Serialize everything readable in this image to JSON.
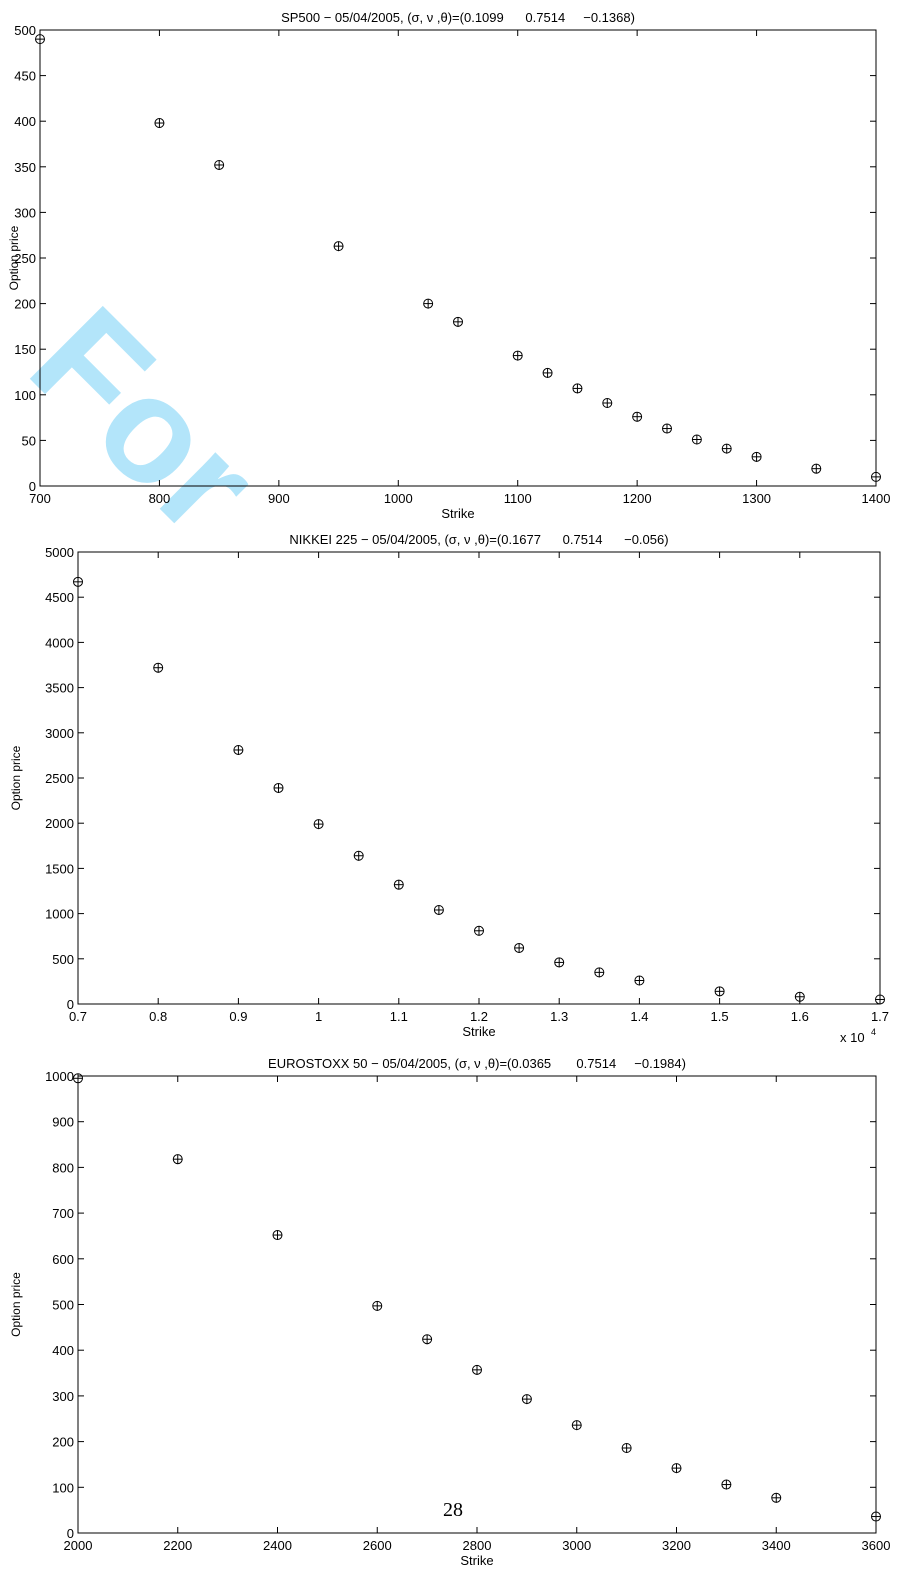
{
  "watermark": "For",
  "page_number": "28",
  "chart_data": [
    {
      "type": "scatter",
      "marker": "circle-plus",
      "color": "#000000",
      "title": "SP500 − 05/04/2005, (σ, ν ,θ)=(0.1099      0.7514     −0.1368)",
      "x_label": "Strike",
      "y_label": "Option price",
      "x": [
        700,
        800,
        850,
        950,
        1025,
        1050,
        1100,
        1125,
        1150,
        1175,
        1200,
        1225,
        1250,
        1275,
        1300,
        1350,
        1400
      ],
      "values": [
        490,
        398,
        352,
        263,
        200,
        180,
        143,
        124,
        107,
        91,
        76,
        63,
        51,
        41,
        32,
        19,
        10
      ],
      "xlim": [
        700,
        1400
      ],
      "xticks": [
        700,
        800,
        900,
        1000,
        1100,
        1200,
        1300,
        1400
      ],
      "ylim": [
        0,
        500
      ],
      "yticks": [
        0,
        50,
        100,
        150,
        200,
        250,
        300,
        350,
        400,
        450,
        500
      ]
    },
    {
      "type": "scatter",
      "marker": "circle-plus",
      "color": "#000000",
      "title": "NIKKEI 225 − 05/04/2005, (σ, ν ,θ)=(0.1677      0.7514      −0.056)",
      "x_label": "Strike",
      "y_label": "Option price",
      "x_multiplier": "x 10",
      "x_exponent": "4",
      "x": [
        0.7,
        0.8,
        0.9,
        0.95,
        1.0,
        1.05,
        1.1,
        1.15,
        1.2,
        1.25,
        1.3,
        1.35,
        1.4,
        1.5,
        1.6,
        1.7
      ],
      "values": [
        4670,
        3720,
        2810,
        2390,
        1990,
        1640,
        1320,
        1040,
        810,
        620,
        460,
        350,
        260,
        140,
        80,
        50
      ],
      "xlim": [
        0.7,
        1.7
      ],
      "xticks": [
        0.7,
        0.8,
        0.9,
        1,
        1.1,
        1.2,
        1.3,
        1.4,
        1.5,
        1.6,
        1.7
      ],
      "ylim": [
        0,
        5000
      ],
      "yticks": [
        0,
        500,
        1000,
        1500,
        2000,
        2500,
        3000,
        3500,
        4000,
        4500,
        5000
      ]
    },
    {
      "type": "scatter",
      "marker": "circle-plus",
      "color": "#000000",
      "title": "EUROSTOXX 50 − 05/04/2005, (σ, ν ,θ)=(0.0365       0.7514     −0.1984)",
      "x_label": "Strike",
      "y_label": "Option price",
      "x": [
        2000,
        2200,
        2400,
        2600,
        2700,
        2800,
        2900,
        3000,
        3100,
        3200,
        3300,
        3400,
        3600
      ],
      "values": [
        995,
        818,
        652,
        497,
        424,
        357,
        293,
        236,
        186,
        142,
        106,
        77,
        36
      ],
      "xlim": [
        2000,
        3600
      ],
      "xticks": [
        2000,
        2200,
        2400,
        2600,
        2800,
        3000,
        3200,
        3400,
        3600
      ],
      "ylim": [
        0,
        1000
      ],
      "yticks": [
        0,
        100,
        200,
        300,
        400,
        500,
        600,
        700,
        800,
        900,
        1000
      ]
    }
  ]
}
